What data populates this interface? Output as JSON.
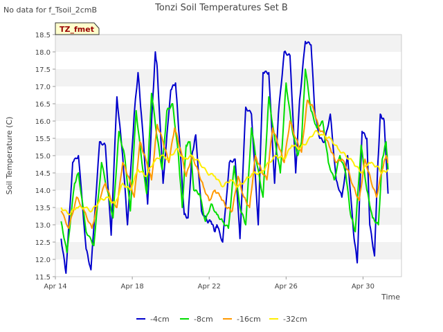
{
  "header": {
    "no_data_note": "No data for f_Tsoil_2cmB",
    "badge": "TZ_fmet"
  },
  "chart_data": {
    "type": "line",
    "title": "Tonzi Soil Temperatures Set B",
    "xlabel": "Time",
    "ylabel": "Soil Temperature (C)",
    "xlim": [
      0,
      18
    ],
    "ylim": [
      11.5,
      18.5
    ],
    "x_ticks": [
      {
        "value": 0,
        "label": "Apr 14"
      },
      {
        "value": 4,
        "label": "Apr 18"
      },
      {
        "value": 8,
        "label": "Apr 22"
      },
      {
        "value": 12,
        "label": "Apr 26"
      },
      {
        "value": 16,
        "label": "Apr 30"
      }
    ],
    "y_ticks": [
      11.5,
      12.0,
      12.5,
      13.0,
      13.5,
      14.0,
      14.5,
      15.0,
      15.5,
      16.0,
      16.5,
      17.0,
      17.5,
      18.0,
      18.5
    ],
    "y_tick_labels": [
      "11.5",
      "12.0",
      "12.5",
      "13.0",
      "13.5",
      "14.0",
      "14.5",
      "15.0",
      "15.5",
      "16.0",
      "16.5",
      "17.0",
      "17.5",
      "18.0",
      "18.5"
    ],
    "grid": "horizontal bands",
    "legend_position": "bottom-center",
    "series": [
      {
        "name": "-4cm",
        "color": "#0000cc",
        "x": [
          0.3,
          0.55,
          0.9,
          1.2,
          1.6,
          1.85,
          2.3,
          2.6,
          2.9,
          3.2,
          3.5,
          3.75,
          4.1,
          4.3,
          4.5,
          4.8,
          5.05,
          5.2,
          5.3,
          5.6,
          6.0,
          6.25,
          6.45,
          6.7,
          6.9,
          7.1,
          7.3,
          7.6,
          7.9,
          8.1,
          8.3,
          8.4,
          8.7,
          9.05,
          9.35,
          9.6,
          9.9,
          10.2,
          10.55,
          10.8,
          11.1,
          11.4,
          11.6,
          11.9,
          12.2,
          12.5,
          12.7,
          13.0,
          13.3,
          13.5,
          13.75,
          14.0,
          14.3,
          14.6,
          14.9,
          15.2,
          15.5,
          15.7,
          15.95,
          16.2,
          16.35,
          16.6,
          16.75,
          16.9,
          17.1,
          17.3
        ],
        "y": [
          12.6,
          11.6,
          14.8,
          15.0,
          12.3,
          11.7,
          15.4,
          15.3,
          12.7,
          16.7,
          15.0,
          13.0,
          16.2,
          17.4,
          16.0,
          13.6,
          16.5,
          18.0,
          17.5,
          14.2,
          16.9,
          17.1,
          15.5,
          13.3,
          13.2,
          15.0,
          15.6,
          13.4,
          13.1,
          13.1,
          12.8,
          13.0,
          12.5,
          14.8,
          14.9,
          12.6,
          16.4,
          16.2,
          13.0,
          17.4,
          17.4,
          14.2,
          16.2,
          18.0,
          17.9,
          14.5,
          16.6,
          18.3,
          18.2,
          16.2,
          15.5,
          15.4,
          16.2,
          14.3,
          13.8,
          15.0,
          12.8,
          11.9,
          15.7,
          15.5,
          13.0,
          12.1,
          14.5,
          16.2,
          16.0,
          13.9
        ]
      },
      {
        "name": "-8cm",
        "color": "#00dd00",
        "x": [
          0.3,
          0.6,
          1.0,
          1.2,
          1.6,
          2.0,
          2.4,
          2.7,
          3.0,
          3.3,
          3.6,
          3.9,
          4.2,
          4.5,
          4.75,
          5.0,
          5.3,
          5.55,
          5.8,
          6.1,
          6.4,
          6.6,
          6.8,
          7.0,
          7.2,
          7.5,
          7.8,
          8.1,
          8.4,
          8.7,
          9.0,
          9.3,
          9.6,
          9.9,
          10.2,
          10.5,
          10.8,
          11.1,
          11.4,
          11.7,
          12.0,
          12.3,
          12.6,
          12.8,
          13.0,
          13.3,
          13.6,
          13.9,
          14.2,
          14.5,
          14.8,
          15.1,
          15.35,
          15.6,
          15.9,
          16.2,
          16.5,
          16.8,
          17.0,
          17.2,
          17.3
        ],
        "y": [
          13.1,
          12.2,
          14.2,
          14.5,
          12.8,
          12.4,
          14.8,
          14.0,
          13.2,
          15.7,
          15.0,
          13.4,
          16.3,
          14.8,
          13.9,
          16.8,
          15.5,
          14.6,
          16.3,
          16.5,
          15.0,
          13.5,
          15.3,
          15.4,
          14.0,
          13.9,
          13.1,
          13.6,
          13.3,
          13.1,
          12.9,
          14.7,
          13.5,
          13.0,
          15.8,
          14.7,
          13.8,
          16.7,
          15.5,
          14.5,
          17.1,
          15.8,
          15.0,
          15.4,
          17.5,
          16.3,
          15.8,
          16.0,
          14.8,
          14.3,
          15.0,
          14.5,
          13.3,
          12.8,
          15.3,
          14.0,
          13.2,
          13.0,
          14.9,
          15.4,
          14.6
        ]
      },
      {
        "name": "-16cm",
        "color": "#ff9900",
        "x": [
          0.3,
          0.7,
          1.1,
          1.5,
          1.9,
          2.2,
          2.6,
          2.9,
          3.2,
          3.5,
          3.8,
          4.1,
          4.4,
          4.7,
          5.0,
          5.3,
          5.6,
          5.9,
          6.2,
          6.5,
          6.8,
          7.1,
          7.4,
          7.7,
          8.0,
          8.3,
          8.6,
          8.9,
          9.2,
          9.5,
          9.8,
          10.1,
          10.4,
          10.7,
          11.0,
          11.3,
          11.6,
          11.9,
          12.2,
          12.5,
          12.8,
          13.1,
          13.4,
          13.7,
          14.0,
          14.3,
          14.6,
          14.9,
          15.2,
          15.5,
          15.8,
          16.1,
          16.4,
          16.7,
          17.0,
          17.2,
          17.3
        ],
        "y": [
          13.4,
          12.9,
          13.8,
          13.4,
          12.9,
          13.6,
          14.2,
          13.7,
          13.5,
          14.8,
          14.4,
          13.8,
          15.4,
          14.9,
          14.3,
          15.9,
          15.4,
          14.8,
          15.8,
          15.2,
          14.4,
          15.0,
          14.6,
          14.1,
          13.7,
          14.0,
          13.8,
          13.5,
          13.4,
          14.4,
          13.8,
          13.5,
          15.0,
          14.6,
          14.3,
          15.8,
          15.3,
          14.8,
          16.0,
          15.5,
          15.1,
          16.6,
          16.4,
          15.8,
          15.6,
          15.2,
          14.8,
          14.9,
          14.6,
          14.1,
          13.7,
          14.9,
          14.3,
          13.8,
          14.6,
          15.0,
          14.8
        ]
      },
      {
        "name": "-32cm",
        "color": "#ffee00",
        "x": [
          0.3,
          0.7,
          1.1,
          1.5,
          1.9,
          2.3,
          2.7,
          3.1,
          3.5,
          3.9,
          4.3,
          4.7,
          5.1,
          5.5,
          5.9,
          6.3,
          6.7,
          7.1,
          7.5,
          7.9,
          8.3,
          8.7,
          9.1,
          9.5,
          9.9,
          10.3,
          10.7,
          11.1,
          11.5,
          11.9,
          12.3,
          12.7,
          13.1,
          13.5,
          13.9,
          14.3,
          14.7,
          15.1,
          15.5,
          15.9,
          16.3,
          16.7,
          17.0,
          17.3
        ],
        "y": [
          13.5,
          13.3,
          13.5,
          13.5,
          13.4,
          13.7,
          13.8,
          13.6,
          14.2,
          14.0,
          14.6,
          14.4,
          14.8,
          15.0,
          14.9,
          15.2,
          14.9,
          15.0,
          14.8,
          14.5,
          14.4,
          14.1,
          14.3,
          14.1,
          14.3,
          14.5,
          14.5,
          14.8,
          15.0,
          14.9,
          15.3,
          15.2,
          15.4,
          15.7,
          15.6,
          15.5,
          15.2,
          15.0,
          14.8,
          14.5,
          14.8,
          14.7,
          14.5,
          14.6
        ]
      }
    ]
  }
}
